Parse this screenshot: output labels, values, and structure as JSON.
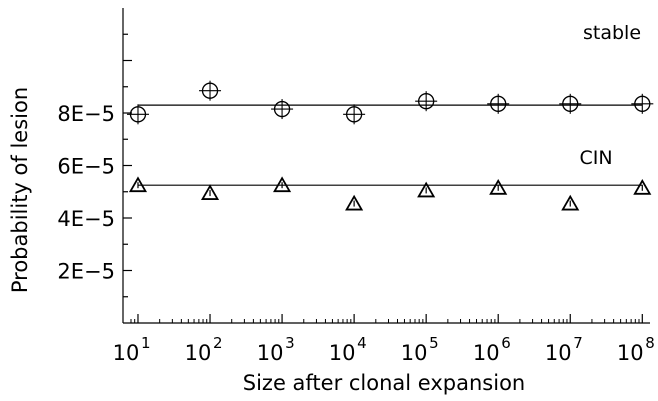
{
  "chart_data": {
    "type": "scatter",
    "title": "",
    "xlabel": "Size after clonal expansion",
    "ylabel": "Probability of lesion",
    "x_scale": "log",
    "xlim": [
      8,
      120000000
    ],
    "ylim": [
      0,
      0.00012
    ],
    "grid": false,
    "legend": "none",
    "x_tick_labels": [
      {
        "base": "10",
        "exp": "1"
      },
      {
        "base": "10",
        "exp": "2"
      },
      {
        "base": "10",
        "exp": "3"
      },
      {
        "base": "10",
        "exp": "4"
      },
      {
        "base": "10",
        "exp": "5"
      },
      {
        "base": "10",
        "exp": "6"
      },
      {
        "base": "10",
        "exp": "7"
      },
      {
        "base": "10",
        "exp": "8"
      }
    ],
    "y_tick_labels": [
      "2E−5",
      "4E−5",
      "6E−5",
      "8E−5"
    ],
    "y_tick_values": [
      2e-05,
      4e-05,
      6e-05,
      8e-05
    ],
    "series": [
      {
        "name": "stable",
        "marker": "circle-cross",
        "x": [
          10,
          100,
          1000,
          10000,
          100000,
          1000000,
          10000000,
          100000000
        ],
        "y": [
          7.95e-05,
          8.85e-05,
          8.15e-05,
          7.95e-05,
          8.45e-05,
          8.35e-05,
          8.35e-05,
          8.35e-05
        ],
        "fit": 8.3e-05
      },
      {
        "name": "CIN",
        "marker": "triangle",
        "x": [
          10,
          100,
          1000,
          10000,
          100000,
          1000000,
          10000000,
          100000000
        ],
        "y": [
          5.25e-05,
          4.95e-05,
          5.25e-05,
          4.55e-05,
          5.05e-05,
          5.15e-05,
          4.55e-05,
          5.15e-05
        ],
        "fit": 5.25e-05
      }
    ]
  }
}
